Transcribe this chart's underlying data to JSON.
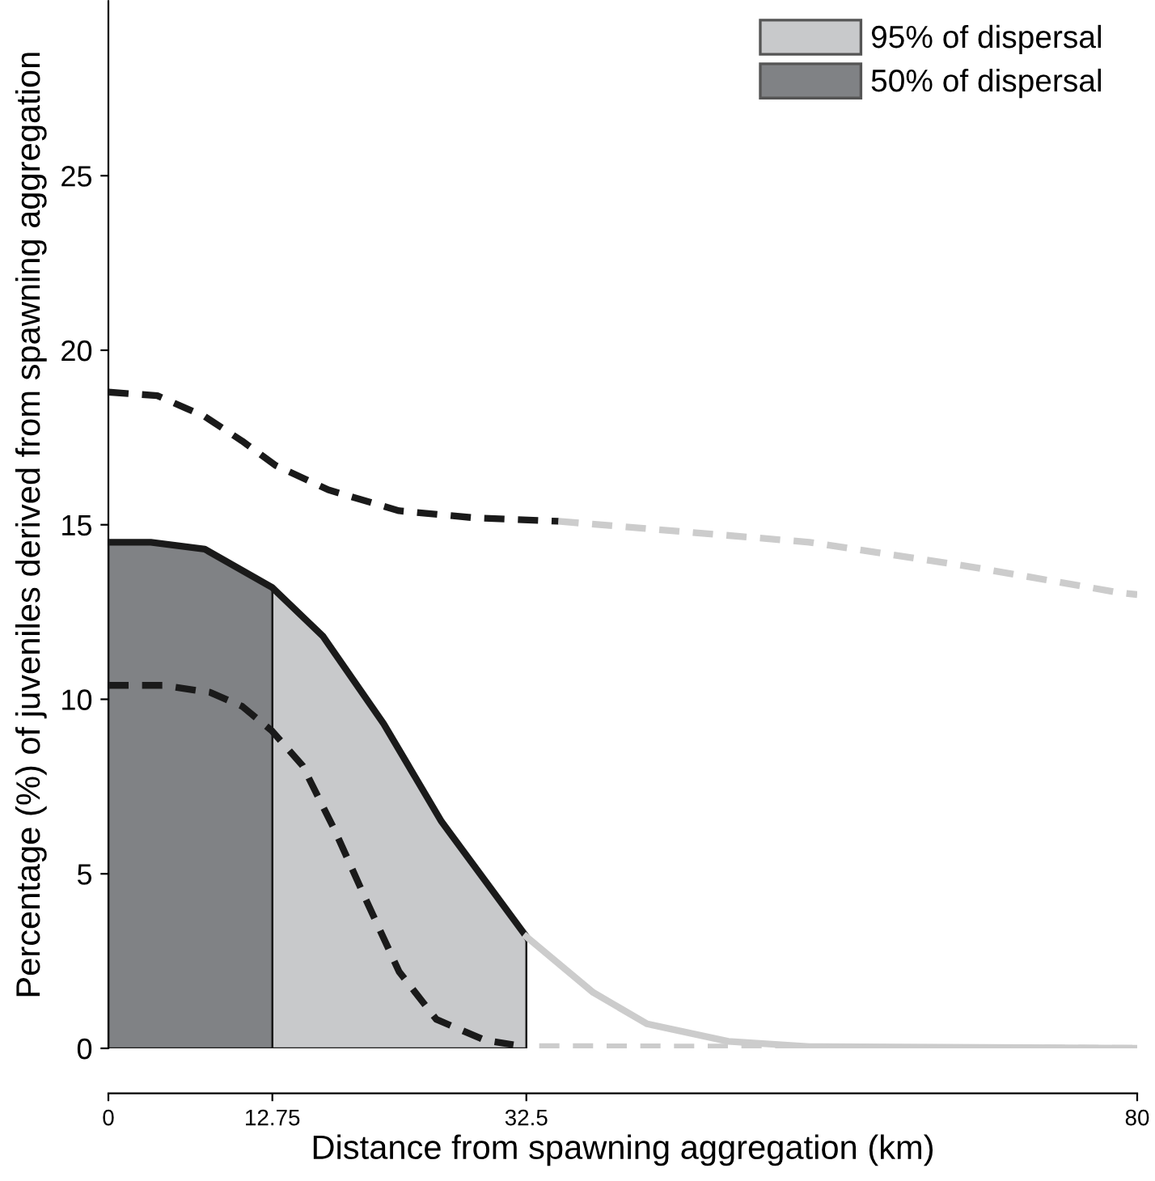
{
  "chart_data": {
    "type": "line",
    "xlabel": "Distance from spawning aggregation (km)",
    "ylabel": "Percentage (%) of juveniles derived from spawning aggregation",
    "xlim": [
      0,
      80
    ],
    "xticks": [
      0,
      12.75,
      32.5,
      80
    ],
    "ylim": [
      0,
      30
    ],
    "yticks": [
      0,
      5,
      10,
      15,
      20,
      25
    ],
    "grid": false,
    "legend": "top right",
    "series": [
      {
        "type": "area",
        "name": "95% of dispersal",
        "color": "#c8c9cb",
        "x": [
          12.75,
          16.7,
          21.4,
          25.9,
          32.5
        ],
        "values": [
          13.2,
          11.8,
          9.3,
          6.5,
          3.2
        ]
      },
      {
        "type": "area",
        "name": "50% of dispersal",
        "color": "#808285",
        "x": [
          0,
          3.3,
          7.5,
          12.75
        ],
        "values": [
          14.5,
          14.5,
          14.3,
          13.2
        ]
      },
      {
        "color": "#1a1a1a",
        "line_style": "solid",
        "x": [
          0,
          3.3,
          7.5,
          12.75,
          16.7,
          21.4,
          25.9,
          32.5
        ],
        "values": [
          14.5,
          14.5,
          14.3,
          13.2,
          11.8,
          9.3,
          6.5,
          3.2
        ]
      },
      {
        "color": "#cccccc",
        "line_style": "solid",
        "x": [
          32.5,
          37.7,
          41.9,
          48.2,
          54.5,
          80
        ],
        "values": [
          3.2,
          1.6,
          0.7,
          0.2,
          0.05,
          0
        ]
      },
      {
        "color": "#1a1a1a",
        "line_style": "dashed",
        "x": [
          0,
          3.8,
          7.5,
          10.4,
          13,
          17.1,
          22.6,
          28.4,
          35
        ],
        "values": [
          18.8,
          18.7,
          18.1,
          17.4,
          16.7,
          16.0,
          15.4,
          15.2,
          15.1
        ]
      },
      {
        "color": "#cccccc",
        "line_style": "dashed",
        "x": [
          35,
          54.5,
          67,
          78.7,
          80
        ],
        "values": [
          15.1,
          14.5,
          13.8,
          13.05,
          13.0
        ]
      },
      {
        "color": "#1a1a1a",
        "line_style": "dashed",
        "x": [
          0,
          4.2,
          7.9,
          10.4,
          12.7,
          15.1,
          17.6,
          20.1,
          22.6,
          25.5,
          29.3,
          31.5
        ],
        "values": [
          10.4,
          10.4,
          10.2,
          9.8,
          9.1,
          8.1,
          6.25,
          4.2,
          2.2,
          0.83,
          0.23,
          0.1
        ]
      },
      {
        "color": "#cccccc",
        "line_style": "dashed",
        "x": [
          33.5,
          80
        ],
        "values": [
          0.05,
          0
        ]
      }
    ]
  }
}
